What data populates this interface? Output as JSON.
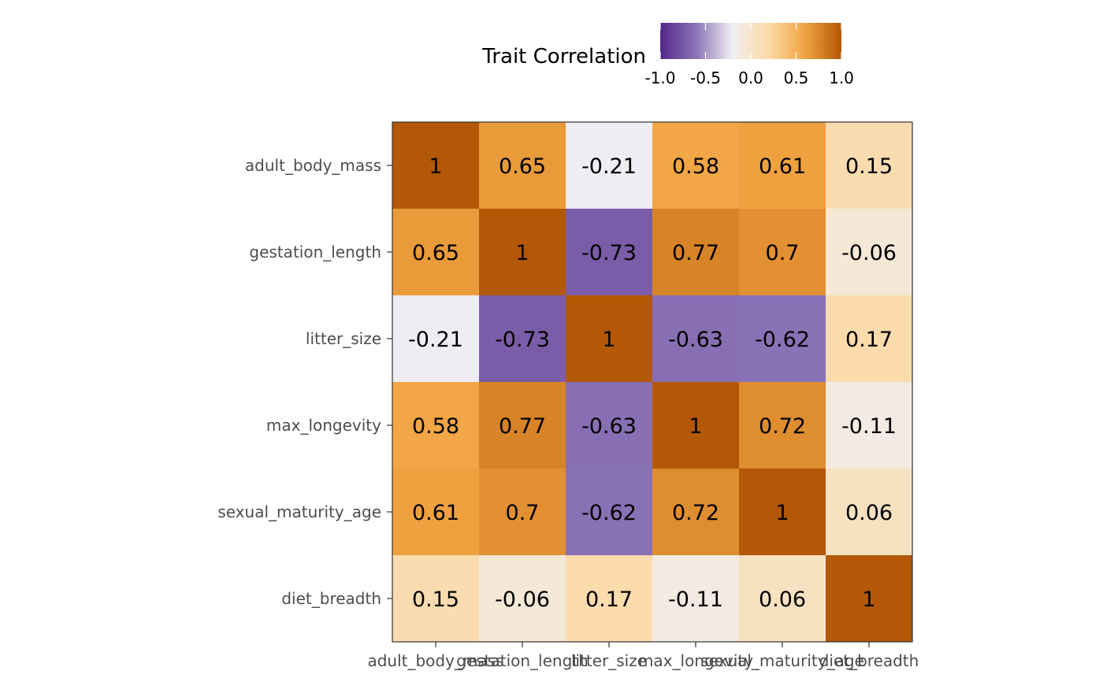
{
  "chart_data": {
    "type": "heatmap",
    "legend": {
      "title": "Trait Correlation",
      "ticks": [
        -1.0,
        -0.5,
        0.0,
        0.5,
        1.0
      ],
      "tick_labels": [
        "-1.0",
        "-0.5",
        "0.0",
        "0.5",
        "1.0"
      ],
      "limits": [
        -1,
        1
      ],
      "placement": "top",
      "colors": [
        "#542788",
        "#8c75b7",
        "#f0f0f2",
        "#fdd9a6",
        "#f1a340",
        "#b35806"
      ]
    },
    "rows": [
      "adult_body_mass",
      "gestation_length",
      "litter_size",
      "max_longevity",
      "sexual_maturity_age",
      "diet_breadth"
    ],
    "cols": [
      "adult_body_mass",
      "gestation_length",
      "litter_size",
      "max_longevity",
      "sexual_maturity_age",
      "diet_breadth"
    ],
    "values": [
      [
        1,
        0.65,
        -0.21,
        0.58,
        0.61,
        0.15
      ],
      [
        0.65,
        1,
        -0.73,
        0.77,
        0.7,
        -0.06
      ],
      [
        -0.21,
        -0.73,
        1,
        -0.63,
        -0.62,
        0.17
      ],
      [
        0.58,
        0.77,
        -0.63,
        1,
        0.72,
        -0.11
      ],
      [
        0.61,
        0.7,
        -0.62,
        0.72,
        1,
        0.06
      ],
      [
        0.15,
        -0.06,
        0.17,
        -0.11,
        0.06,
        1
      ]
    ],
    "cell_labels": [
      [
        "1",
        "0.65",
        "-0.21",
        "0.58",
        "0.61",
        "0.15"
      ],
      [
        "0.65",
        "1",
        "-0.73",
        "0.77",
        "0.7",
        "-0.06"
      ],
      [
        "-0.21",
        "-0.73",
        "1",
        "-0.63",
        "-0.62",
        "0.17"
      ],
      [
        "0.58",
        "0.77",
        "-0.63",
        "1",
        "0.72",
        "-0.11"
      ],
      [
        "0.61",
        "0.7",
        "-0.62",
        "0.72",
        "1",
        "0.06"
      ],
      [
        "0.15",
        "-0.06",
        "0.17",
        "-0.11",
        "0.06",
        "1"
      ]
    ]
  }
}
